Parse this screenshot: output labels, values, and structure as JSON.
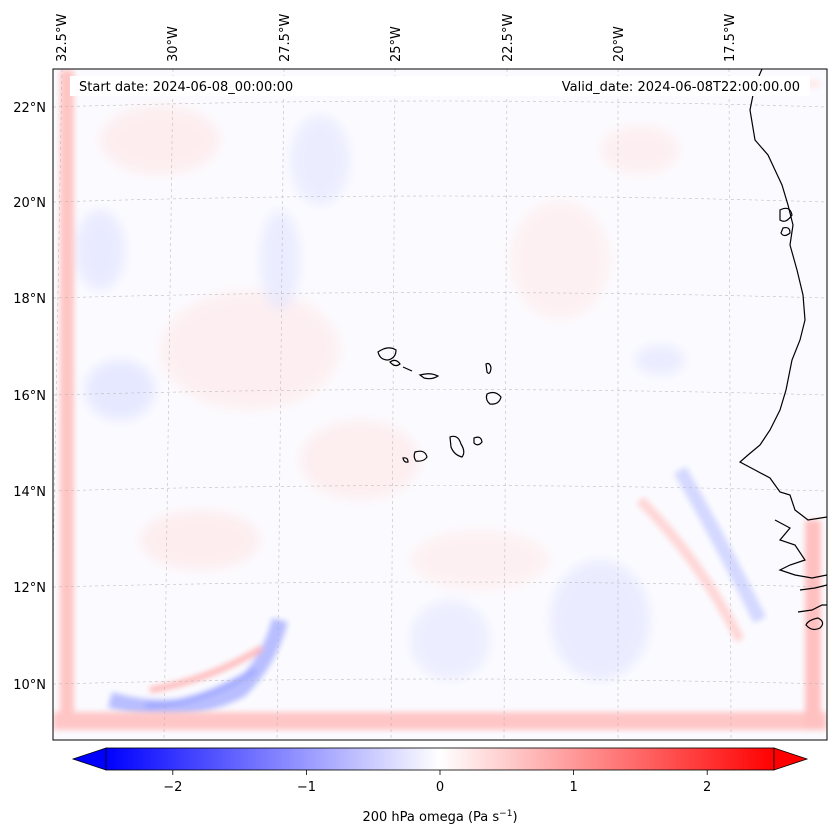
{
  "header": {
    "start_date": "Start date: 2024-06-08_00:00:00",
    "valid_date": "Valid_date: 2024-06-08T22:00:00.00"
  },
  "longitude_labels": [
    "32.5°W",
    "30°W",
    "27.5°W",
    "25°W",
    "22.5°W",
    "20°W",
    "17.5°W"
  ],
  "latitude_labels": [
    "22°N",
    "20°N",
    "18°N",
    "16°N",
    "14°N",
    "12°N",
    "10°N"
  ],
  "colorbar": {
    "variable": "200 hPa omega",
    "units_prefix": "(Pa s",
    "units_exp": "−1",
    "units_suffix": ")",
    "ticks": [
      {
        "value": -2,
        "label": "−2"
      },
      {
        "value": -1,
        "label": "−1"
      },
      {
        "value": 0,
        "label": "0"
      },
      {
        "value": 1,
        "label": "1"
      },
      {
        "value": 2,
        "label": "2"
      }
    ],
    "range": [
      -2.5,
      2.5
    ],
    "extend": "both",
    "colors": {
      "min": "#0000ff",
      "mid": "#ffffff",
      "max": "#ff0000"
    }
  },
  "colors": {
    "grid": "#b0b0b0",
    "coast": "#000000",
    "field_base": "#fbfbff"
  }
}
